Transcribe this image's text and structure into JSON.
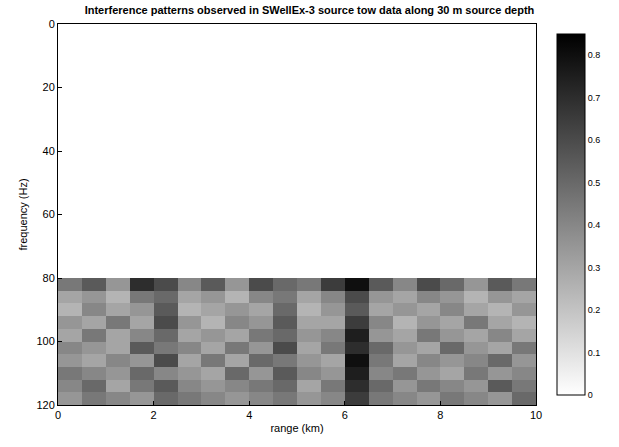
{
  "chart_data": {
    "type": "heatmap",
    "title": "Interference patterns observed in SWellEx-3 source tow data along 30 m source depth",
    "x_label": "range (km)",
    "y_label": "frequency (Hz)",
    "xlim": [
      0,
      10
    ],
    "xticks": [
      0,
      2,
      4,
      6,
      8,
      10
    ],
    "ylim": [
      120,
      0
    ],
    "yticks": [
      0,
      20,
      40,
      60,
      80,
      100,
      120
    ],
    "zlim": [
      0,
      0.85
    ],
    "zticks": [
      0,
      0.1,
      0.2,
      0.3,
      0.4,
      0.5,
      0.6,
      0.7,
      0.8
    ],
    "x": [
      0.25,
      0.75,
      1.25,
      1.75,
      2.25,
      2.75,
      3.25,
      3.75,
      4.25,
      4.75,
      5.25,
      5.75,
      6.25,
      6.75,
      7.25,
      7.75,
      8.25,
      8.75,
      9.25,
      9.75
    ],
    "y": [
      82,
      86,
      90,
      94,
      98,
      102,
      106,
      110,
      114,
      118
    ],
    "cells": [
      [
        0.45,
        0.55,
        0.35,
        0.7,
        0.6,
        0.4,
        0.55,
        0.35,
        0.6,
        0.5,
        0.45,
        0.65,
        0.8,
        0.55,
        0.4,
        0.6,
        0.5,
        0.35,
        0.55,
        0.45
      ],
      [
        0.3,
        0.35,
        0.25,
        0.45,
        0.5,
        0.3,
        0.35,
        0.25,
        0.4,
        0.45,
        0.3,
        0.4,
        0.6,
        0.35,
        0.3,
        0.4,
        0.35,
        0.25,
        0.35,
        0.3
      ],
      [
        0.25,
        0.4,
        0.3,
        0.35,
        0.55,
        0.25,
        0.3,
        0.35,
        0.3,
        0.5,
        0.25,
        0.35,
        0.55,
        0.3,
        0.35,
        0.3,
        0.4,
        0.3,
        0.25,
        0.35
      ],
      [
        0.35,
        0.3,
        0.45,
        0.3,
        0.6,
        0.35,
        0.25,
        0.4,
        0.35,
        0.55,
        0.3,
        0.3,
        0.65,
        0.4,
        0.25,
        0.35,
        0.3,
        0.45,
        0.3,
        0.25
      ],
      [
        0.3,
        0.45,
        0.3,
        0.4,
        0.5,
        0.3,
        0.35,
        0.3,
        0.45,
        0.5,
        0.35,
        0.4,
        0.75,
        0.35,
        0.3,
        0.45,
        0.35,
        0.3,
        0.4,
        0.3
      ],
      [
        0.4,
        0.35,
        0.3,
        0.55,
        0.45,
        0.4,
        0.3,
        0.45,
        0.35,
        0.6,
        0.3,
        0.45,
        0.7,
        0.5,
        0.35,
        0.3,
        0.5,
        0.35,
        0.3,
        0.45
      ],
      [
        0.35,
        0.3,
        0.4,
        0.35,
        0.6,
        0.3,
        0.45,
        0.3,
        0.5,
        0.45,
        0.35,
        0.3,
        0.8,
        0.45,
        0.3,
        0.4,
        0.35,
        0.4,
        0.5,
        0.35
      ],
      [
        0.45,
        0.4,
        0.35,
        0.5,
        0.4,
        0.35,
        0.3,
        0.5,
        0.35,
        0.55,
        0.4,
        0.35,
        0.75,
        0.4,
        0.45,
        0.35,
        0.3,
        0.45,
        0.35,
        0.4
      ],
      [
        0.4,
        0.5,
        0.3,
        0.45,
        0.55,
        0.4,
        0.35,
        0.4,
        0.45,
        0.5,
        0.3,
        0.45,
        0.7,
        0.5,
        0.35,
        0.45,
        0.4,
        0.35,
        0.55,
        0.45
      ],
      [
        0.35,
        0.45,
        0.4,
        0.35,
        0.5,
        0.45,
        0.4,
        0.35,
        0.4,
        0.45,
        0.35,
        0.4,
        0.65,
        0.45,
        0.4,
        0.35,
        0.45,
        0.4,
        0.35,
        0.5
      ]
    ]
  }
}
